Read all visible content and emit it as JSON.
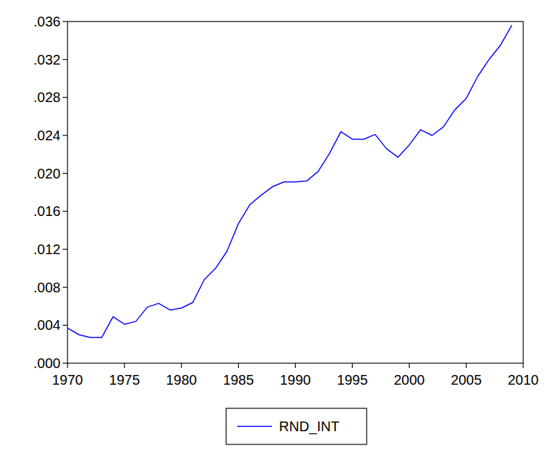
{
  "chart_data": {
    "type": "line",
    "x": [
      1970,
      1971,
      1972,
      1973,
      1974,
      1975,
      1976,
      1977,
      1978,
      1979,
      1980,
      1981,
      1982,
      1983,
      1984,
      1985,
      1986,
      1987,
      1988,
      1989,
      1990,
      1991,
      1992,
      1993,
      1994,
      1995,
      1996,
      1997,
      1998,
      1999,
      2000,
      2001,
      2002,
      2003,
      2004,
      2005,
      2006,
      2007,
      2008,
      2009
    ],
    "series": [
      {
        "name": "RND_INT",
        "color": "#0000ff",
        "line_style": "solid",
        "values": [
          0.0037,
          0.003,
          0.0027,
          0.0027,
          0.0049,
          0.0041,
          0.0044,
          0.0059,
          0.0063,
          0.0056,
          0.0058,
          0.0064,
          0.0088,
          0.01,
          0.0118,
          0.0147,
          0.0167,
          0.0177,
          0.0186,
          0.0191,
          0.0191,
          0.0192,
          0.0202,
          0.0221,
          0.0244,
          0.0236,
          0.0236,
          0.0241,
          0.0226,
          0.0217,
          0.023,
          0.0246,
          0.024,
          0.0249,
          0.0267,
          0.0279,
          0.0302,
          0.032,
          0.0335,
          0.0356
        ]
      }
    ],
    "xlim": [
      1970,
      2010
    ],
    "xticks": [
      1970,
      1975,
      1980,
      1985,
      1990,
      1995,
      2000,
      2005,
      2010
    ],
    "ylim": [
      0,
      0.036
    ],
    "yticks": [
      {
        "value": 0,
        "label": ".000"
      },
      {
        "value": 0.004,
        "label": ".004"
      },
      {
        "value": 0.008,
        "label": ".008"
      },
      {
        "value": 0.012,
        "label": ".012"
      },
      {
        "value": 0.016,
        "label": ".016"
      },
      {
        "value": 0.02,
        "label": ".020"
      },
      {
        "value": 0.024,
        "label": ".024"
      },
      {
        "value": 0.028,
        "label": ".028"
      },
      {
        "value": 0.032,
        "label": ".032"
      },
      {
        "value": 0.036,
        "label": ".036"
      }
    ],
    "grid": false,
    "legend": "bottom"
  }
}
